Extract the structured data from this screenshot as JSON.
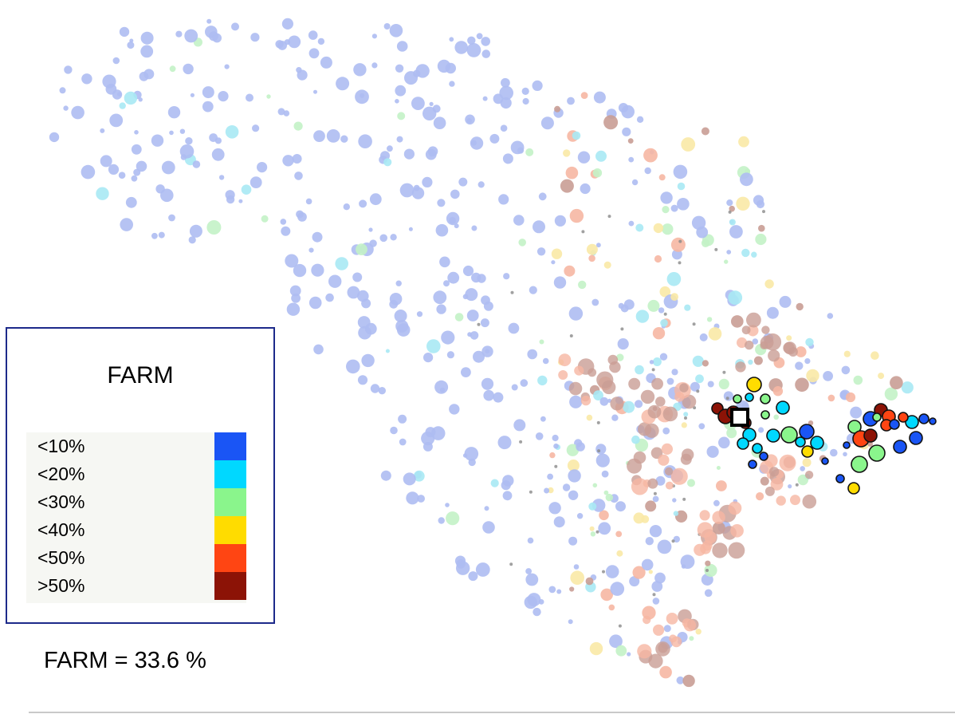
{
  "legend": {
    "title": "FARM",
    "items": [
      {
        "label": "<10%",
        "color": "#1a55f5"
      },
      {
        "label": "<20%",
        "color": "#00d8ff"
      },
      {
        "label": "<30%",
        "color": "#8af58c"
      },
      {
        "label": "<40%",
        "color": "#ffdc00"
      },
      {
        "label": "<50%",
        "color": "#ff4513"
      },
      {
        "label": ">50%",
        "color": "#8c1306"
      }
    ]
  },
  "summary": {
    "farm_value_text": "FARM = 33.6 %"
  }
}
